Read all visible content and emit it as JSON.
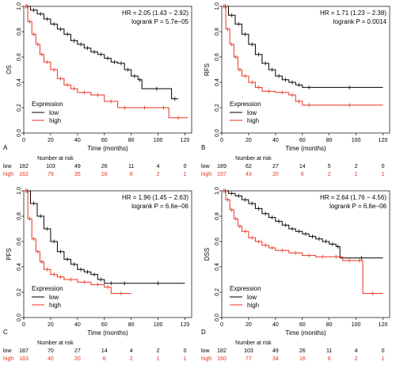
{
  "colors": {
    "low": "#000000",
    "high": "#e8321e",
    "axis": "#000000"
  },
  "chart_data": [
    {
      "type": "line",
      "panel_label": "A",
      "ylabel": "OS",
      "xlabel": "Time (months)",
      "xlim": [
        0,
        125
      ],
      "ylim": [
        0,
        1
      ],
      "xticks": [
        0,
        20,
        40,
        60,
        80,
        100,
        120
      ],
      "yticks": [
        0,
        0.2,
        0.4,
        0.6,
        0.8,
        1
      ],
      "hr_text": "HR = 2.05 (1.43 − 2.92)",
      "p_text": "logrank P = 5.7e−05",
      "legend": {
        "title": "Expression",
        "entries": [
          "low",
          "high"
        ],
        "position": "bottom-left"
      },
      "series": [
        {
          "name": "low",
          "x": [
            0,
            5,
            10,
            15,
            20,
            25,
            30,
            35,
            40,
            45,
            50,
            55,
            60,
            65,
            70,
            75,
            80,
            85,
            88,
            110,
            115
          ],
          "y": [
            1.0,
            0.97,
            0.94,
            0.9,
            0.86,
            0.82,
            0.78,
            0.73,
            0.7,
            0.67,
            0.64,
            0.62,
            0.59,
            0.56,
            0.55,
            0.5,
            0.45,
            0.42,
            0.35,
            0.27,
            0.27
          ]
        },
        {
          "name": "high",
          "x": [
            0,
            3,
            6,
            9,
            12,
            15,
            20,
            25,
            30,
            35,
            40,
            50,
            60,
            70,
            80,
            100,
            108,
            122
          ],
          "y": [
            1.0,
            0.88,
            0.78,
            0.7,
            0.62,
            0.56,
            0.5,
            0.43,
            0.38,
            0.35,
            0.32,
            0.3,
            0.25,
            0.2,
            0.2,
            0.2,
            0.12,
            0.12
          ]
        }
      ],
      "risk_table": {
        "title": "Number at risk",
        "times": [
          0,
          20,
          40,
          60,
          80,
          100,
          120
        ],
        "rows": [
          {
            "label": "low",
            "values": [
              "182",
              "103",
              "49",
              "26",
              "11",
              "4",
              "0"
            ]
          },
          {
            "label": "high",
            "values": [
              "162",
              "79",
              "35",
              "16",
              "8",
              "2",
              "1"
            ]
          }
        ]
      }
    },
    {
      "type": "line",
      "panel_label": "B",
      "ylabel": "RFS",
      "xlabel": "Time (months)",
      "xlim": [
        0,
        125
      ],
      "ylim": [
        0,
        1
      ],
      "xticks": [
        0,
        20,
        40,
        60,
        80,
        100,
        120
      ],
      "yticks": [
        0,
        0.2,
        0.4,
        0.6,
        0.8,
        1
      ],
      "hr_text": "HR = 1.71 (1.23 − 2.38)",
      "p_text": "logrank P = 0.0014",
      "legend": {
        "title": "Expression",
        "entries": [
          "low",
          "high"
        ],
        "position": "bottom-left"
      },
      "series": [
        {
          "name": "low",
          "x": [
            0,
            5,
            10,
            15,
            20,
            25,
            30,
            35,
            40,
            45,
            50,
            55,
            60,
            70,
            120
          ],
          "y": [
            1.0,
            0.93,
            0.86,
            0.78,
            0.7,
            0.62,
            0.55,
            0.5,
            0.45,
            0.42,
            0.4,
            0.38,
            0.36,
            0.36,
            0.36
          ]
        },
        {
          "name": "high",
          "x": [
            0,
            3,
            6,
            9,
            12,
            15,
            20,
            25,
            30,
            40,
            50,
            55,
            60,
            70,
            120
          ],
          "y": [
            1.0,
            0.82,
            0.7,
            0.6,
            0.5,
            0.45,
            0.4,
            0.36,
            0.33,
            0.32,
            0.3,
            0.25,
            0.22,
            0.22,
            0.22
          ]
        }
      ],
      "risk_table": {
        "title": "Number at risk",
        "times": [
          0,
          20,
          40,
          60,
          80,
          100,
          120
        ],
        "rows": [
          {
            "label": "low",
            "values": [
              "189",
              "62",
              "27",
              "14",
              "5",
              "2",
              "0"
            ]
          },
          {
            "label": "high",
            "values": [
              "157",
              "43",
              "20",
              "6",
              "2",
              "1",
              "1"
            ]
          }
        ]
      }
    },
    {
      "type": "line",
      "panel_label": "C",
      "ylabel": "PFS",
      "xlabel": "Time (months)",
      "xlim": [
        0,
        125
      ],
      "ylim": [
        0,
        1
      ],
      "xticks": [
        0,
        20,
        40,
        60,
        80,
        100,
        120
      ],
      "yticks": [
        0,
        0.2,
        0.4,
        0.6,
        0.8,
        1
      ],
      "hr_text": "HR = 1.96 (1.45 − 2.63)",
      "p_text": "logrank P = 6.6e−06",
      "legend": {
        "title": "Expression",
        "entries": [
          "low",
          "high"
        ],
        "position": "bottom-left"
      },
      "series": [
        {
          "name": "low",
          "x": [
            0,
            5,
            10,
            15,
            20,
            25,
            30,
            35,
            40,
            45,
            50,
            55,
            60,
            70,
            80,
            120
          ],
          "y": [
            1.0,
            0.9,
            0.8,
            0.7,
            0.6,
            0.52,
            0.46,
            0.42,
            0.38,
            0.36,
            0.34,
            0.3,
            0.27,
            0.27,
            0.27,
            0.27
          ]
        },
        {
          "name": "high",
          "x": [
            0,
            3,
            6,
            9,
            12,
            15,
            20,
            25,
            30,
            40,
            50,
            60,
            65,
            80
          ],
          "y": [
            1.0,
            0.78,
            0.62,
            0.52,
            0.44,
            0.38,
            0.34,
            0.32,
            0.3,
            0.28,
            0.26,
            0.24,
            0.19,
            0.19
          ]
        }
      ],
      "risk_table": {
        "title": "Number at risk",
        "times": [
          0,
          20,
          40,
          60,
          80,
          100,
          120
        ],
        "rows": [
          {
            "label": "low",
            "values": [
              "187",
              "70",
              "27",
              "14",
              "4",
              "2",
              "0"
            ]
          },
          {
            "label": "high",
            "values": [
              "183",
              "40",
              "20",
              "6",
              "2",
              "1",
              "1"
            ]
          }
        ]
      }
    },
    {
      "type": "line",
      "panel_label": "D",
      "ylabel": "DSS",
      "xlabel": "Time (months)",
      "xlim": [
        0,
        125
      ],
      "ylim": [
        0,
        1
      ],
      "xticks": [
        0,
        20,
        40,
        60,
        80,
        100,
        120
      ],
      "yticks": [
        0,
        0.2,
        0.4,
        0.6,
        0.8,
        1
      ],
      "hr_text": "HR = 2.64 (1.76 − 4.56)",
      "p_text": "logrank P = 6.6e−06",
      "legend": {
        "title": "Expression",
        "entries": [
          "low",
          "high"
        ],
        "position": "bottom-left"
      },
      "series": [
        {
          "name": "low",
          "x": [
            0,
            5,
            10,
            15,
            20,
            25,
            30,
            35,
            40,
            45,
            50,
            55,
            60,
            65,
            70,
            75,
            80,
            85,
            88,
            120
          ],
          "y": [
            1.0,
            0.98,
            0.96,
            0.93,
            0.9,
            0.86,
            0.82,
            0.79,
            0.76,
            0.73,
            0.7,
            0.68,
            0.66,
            0.64,
            0.62,
            0.6,
            0.58,
            0.56,
            0.47,
            0.47
          ]
        },
        {
          "name": "high",
          "x": [
            0,
            3,
            6,
            9,
            12,
            15,
            20,
            25,
            30,
            35,
            40,
            50,
            60,
            70,
            80,
            90,
            100,
            105,
            120
          ],
          "y": [
            1.0,
            0.93,
            0.85,
            0.78,
            0.72,
            0.68,
            0.63,
            0.6,
            0.57,
            0.55,
            0.53,
            0.51,
            0.49,
            0.48,
            0.48,
            0.45,
            0.45,
            0.19,
            0.19
          ]
        }
      ],
      "risk_table": {
        "title": "Number at risk",
        "times": [
          0,
          20,
          40,
          60,
          80,
          100,
          120
        ],
        "rows": [
          {
            "label": "low",
            "values": [
              "182",
              "103",
              "49",
              "26",
              "11",
              "4",
              "0"
            ]
          },
          {
            "label": "high",
            "values": [
              "160",
              "77",
              "34",
              "16",
              "8",
              "2",
              "1"
            ]
          }
        ]
      }
    }
  ]
}
